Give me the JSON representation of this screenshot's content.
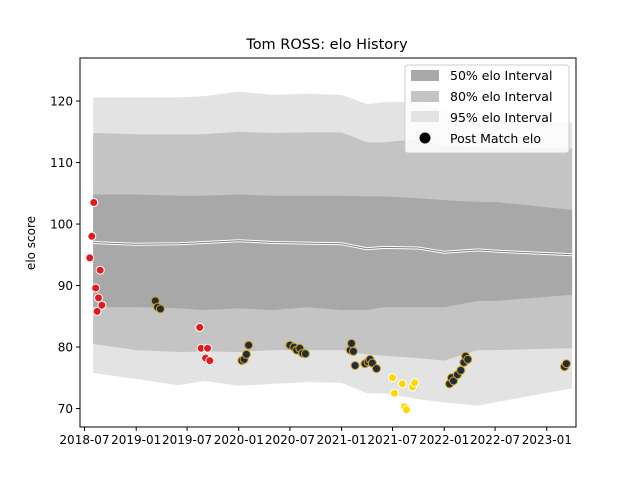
{
  "chart_data": {
    "type": "line",
    "title": "Tom ROSS: elo History",
    "xlabel": "",
    "ylabel": "elo score",
    "x_range": [
      "2018-06-15",
      "2023-04-15"
    ],
    "ylim": [
      67,
      127
    ],
    "x_ticks": [
      {
        "date": "2018-07-01",
        "label": "2018-07"
      },
      {
        "date": "2019-01-01",
        "label": "2019-01"
      },
      {
        "date": "2019-07-01",
        "label": "2019-07"
      },
      {
        "date": "2020-01-01",
        "label": "2020-01"
      },
      {
        "date": "2020-07-01",
        "label": "2020-07"
      },
      {
        "date": "2021-01-01",
        "label": "2021-01"
      },
      {
        "date": "2021-07-01",
        "label": "2021-07"
      },
      {
        "date": "2022-01-01",
        "label": "2022-01"
      },
      {
        "date": "2022-07-01",
        "label": "2022-07"
      },
      {
        "date": "2023-01-01",
        "label": "2023-01"
      }
    ],
    "y_ticks": [
      70,
      80,
      90,
      100,
      110,
      120
    ],
    "grid": false,
    "legend_position": "top-right",
    "legend": [
      {
        "label": "50% elo Interval",
        "kind": "band",
        "color": "#a8a8a8"
      },
      {
        "label": "80% elo Interval",
        "kind": "band",
        "color": "#c4c4c4"
      },
      {
        "label": "95% elo Interval",
        "kind": "band",
        "color": "#e3e3e3"
      },
      {
        "label": "Post Match elo",
        "kind": "marker",
        "color": "#000000"
      }
    ],
    "x": [
      "2018-08-01",
      "2019-01-01",
      "2019-06-01",
      "2019-09-01",
      "2020-01-01",
      "2020-05-01",
      "2020-09-01",
      "2021-01-01",
      "2021-04-01",
      "2021-06-01",
      "2021-10-01",
      "2022-01-01",
      "2022-05-01",
      "2022-07-01",
      "2023-04-01"
    ],
    "mean_line": [
      97.0,
      96.7,
      96.8,
      97.0,
      97.3,
      97.0,
      96.9,
      96.8,
      96.0,
      96.2,
      96.1,
      95.4,
      95.8,
      95.6,
      95.0
    ],
    "interval_50": {
      "lower": [
        86.5,
        86.5,
        86.3,
        86.0,
        86.3,
        86.0,
        86.5,
        86.0,
        86.0,
        86.5,
        86.5,
        86.5,
        87.5,
        87.5,
        88.5
      ],
      "upper": [
        104.8,
        104.8,
        104.6,
        104.6,
        104.8,
        104.6,
        104.6,
        104.6,
        104.5,
        104.5,
        104.2,
        103.9,
        103.6,
        103.6,
        102.3
      ]
    },
    "interval_80": {
      "lower": [
        80.5,
        79.5,
        79.2,
        79.3,
        79.2,
        79.5,
        79.5,
        79.5,
        78.8,
        78.6,
        78.2,
        77.8,
        79.5,
        79.5,
        79.8
      ],
      "upper": [
        114.8,
        114.6,
        114.6,
        114.6,
        115.0,
        114.8,
        114.9,
        114.9,
        113.3,
        113.3,
        113.8,
        112.8,
        112.5,
        112.5,
        112.3
      ]
    },
    "interval_95": {
      "lower": [
        75.8,
        74.8,
        73.8,
        74.5,
        73.7,
        74.0,
        74.3,
        74.2,
        72.5,
        72.5,
        71.5,
        71.0,
        70.5,
        71.0,
        73.3
      ],
      "upper": [
        120.6,
        120.6,
        120.6,
        120.8,
        121.5,
        121.0,
        121.2,
        121.0,
        119.5,
        119.8,
        119.9,
        118.4,
        117.0,
        117.0,
        116.5
      ]
    },
    "series": [
      {
        "name": "Post Match elo",
        "points": [
          {
            "date": "2018-07-20",
            "elo": 94.5,
            "color": "#e31a1c"
          },
          {
            "date": "2018-07-27",
            "elo": 98.0,
            "color": "#e31a1c"
          },
          {
            "date": "2018-08-03",
            "elo": 103.5,
            "color": "#e31a1c"
          },
          {
            "date": "2018-08-10",
            "elo": 89.6,
            "color": "#e31a1c"
          },
          {
            "date": "2018-08-15",
            "elo": 85.8,
            "color": "#e31a1c"
          },
          {
            "date": "2018-08-20",
            "elo": 88.0,
            "color": "#e31a1c"
          },
          {
            "date": "2018-08-26",
            "elo": 92.5,
            "color": "#e31a1c"
          },
          {
            "date": "2018-09-01",
            "elo": 86.8,
            "color": "#e31a1c"
          },
          {
            "date": "2019-03-10",
            "elo": 87.5,
            "color": "#1f2d3d"
          },
          {
            "date": "2019-03-18",
            "elo": 86.5,
            "color": "#1f2d3d"
          },
          {
            "date": "2019-03-28",
            "elo": 86.2,
            "color": "#1f2d3d"
          },
          {
            "date": "2019-08-15",
            "elo": 83.2,
            "color": "#e31a1c"
          },
          {
            "date": "2019-08-20",
            "elo": 79.8,
            "color": "#e31a1c"
          },
          {
            "date": "2019-09-05",
            "elo": 78.2,
            "color": "#e31a1c"
          },
          {
            "date": "2019-09-12",
            "elo": 79.8,
            "color": "#e31a1c"
          },
          {
            "date": "2019-09-20",
            "elo": 77.8,
            "color": "#e31a1c"
          },
          {
            "date": "2020-01-12",
            "elo": 77.8,
            "color": "#1f2d3d"
          },
          {
            "date": "2020-01-20",
            "elo": 78.0,
            "color": "#1f2d3d"
          },
          {
            "date": "2020-01-28",
            "elo": 78.8,
            "color": "#1f2d3d"
          },
          {
            "date": "2020-02-05",
            "elo": 80.3,
            "color": "#1f2d3d"
          },
          {
            "date": "2020-07-01",
            "elo": 80.3,
            "color": "#1f2d3d"
          },
          {
            "date": "2020-07-15",
            "elo": 80.0,
            "color": "#1f2d3d"
          },
          {
            "date": "2020-07-25",
            "elo": 79.5,
            "color": "#1f2d3d"
          },
          {
            "date": "2020-08-05",
            "elo": 79.8,
            "color": "#1f2d3d"
          },
          {
            "date": "2020-08-15",
            "elo": 79.0,
            "color": "#1f2d3d"
          },
          {
            "date": "2020-08-25",
            "elo": 78.9,
            "color": "#1f2d3d"
          },
          {
            "date": "2021-02-01",
            "elo": 79.5,
            "color": "#1f2d3d"
          },
          {
            "date": "2021-02-05",
            "elo": 80.6,
            "color": "#1f2d3d"
          },
          {
            "date": "2021-02-12",
            "elo": 79.3,
            "color": "#1f2d3d"
          },
          {
            "date": "2021-02-18",
            "elo": 77.0,
            "color": "#1f2d3d"
          },
          {
            "date": "2021-03-25",
            "elo": 77.3,
            "color": "#1f2d3d"
          },
          {
            "date": "2021-04-05",
            "elo": 77.6,
            "color": "#1f2d3d"
          },
          {
            "date": "2021-04-12",
            "elo": 78.0,
            "color": "#1f2d3d"
          },
          {
            "date": "2021-04-20",
            "elo": 77.4,
            "color": "#1f2d3d"
          },
          {
            "date": "2021-05-05",
            "elo": 76.5,
            "color": "#1f2d3d"
          },
          {
            "date": "2021-07-01",
            "elo": 75.0,
            "color": "#ffd700"
          },
          {
            "date": "2021-07-08",
            "elo": 72.5,
            "color": "#ffd700"
          },
          {
            "date": "2021-08-05",
            "elo": 74.0,
            "color": "#ffd700"
          },
          {
            "date": "2021-08-12",
            "elo": 70.3,
            "color": "#ffd700"
          },
          {
            "date": "2021-08-20",
            "elo": 69.8,
            "color": "#ffd700"
          },
          {
            "date": "2021-09-10",
            "elo": 73.5,
            "color": "#ffd700"
          },
          {
            "date": "2021-09-18",
            "elo": 74.2,
            "color": "#ffd700"
          },
          {
            "date": "2022-01-20",
            "elo": 74.0,
            "color": "#1f2d3d"
          },
          {
            "date": "2022-01-27",
            "elo": 75.0,
            "color": "#1f2d3d"
          },
          {
            "date": "2022-02-03",
            "elo": 74.5,
            "color": "#1f2d3d"
          },
          {
            "date": "2022-02-17",
            "elo": 75.5,
            "color": "#1f2d3d"
          },
          {
            "date": "2022-03-01",
            "elo": 76.2,
            "color": "#1f2d3d"
          },
          {
            "date": "2022-03-12",
            "elo": 77.5,
            "color": "#1f2d3d"
          },
          {
            "date": "2022-03-18",
            "elo": 78.5,
            "color": "#1f2d3d"
          },
          {
            "date": "2022-03-26",
            "elo": 78.0,
            "color": "#1f2d3d"
          },
          {
            "date": "2023-03-05",
            "elo": 76.8,
            "color": "#1f2d3d"
          },
          {
            "date": "2023-03-12",
            "elo": 77.3,
            "color": "#1f2d3d"
          }
        ]
      }
    ]
  }
}
